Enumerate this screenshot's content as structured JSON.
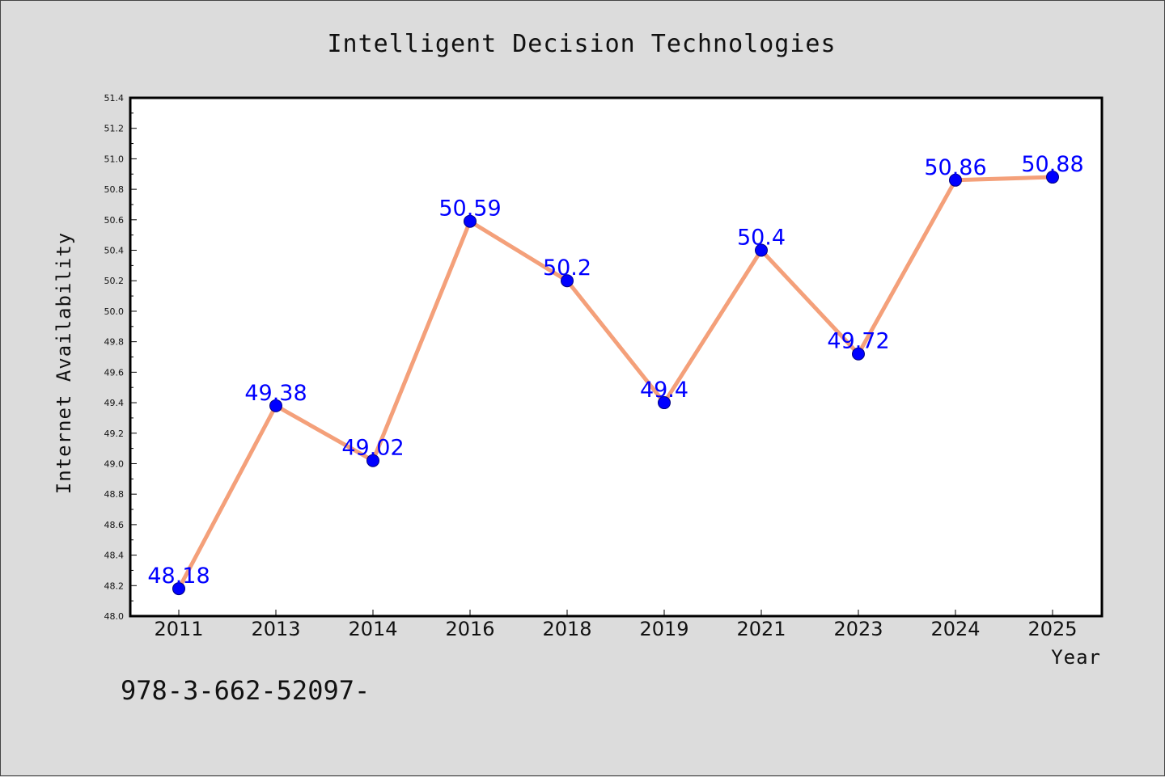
{
  "chart_data": {
    "type": "line",
    "title": "Intelligent Decision Technologies",
    "xlabel": "Year",
    "ylabel": "Internet Availability",
    "categories": [
      "2011",
      "2013",
      "2014",
      "2016",
      "2018",
      "2019",
      "2021",
      "2023",
      "2024",
      "2025"
    ],
    "series": [
      {
        "values": [
          48.18,
          49.38,
          49.02,
          50.59,
          50.2,
          49.4,
          50.4,
          49.72,
          50.86,
          50.88
        ],
        "labels": [
          "48.18",
          "49.38",
          "49.02",
          "50.59",
          "50.2",
          "49.4",
          "50.4",
          "49.72",
          "50.86",
          "50.88"
        ]
      }
    ],
    "ylim": [
      48.0,
      51.4
    ],
    "yticks": [
      "48.0",
      "48.2",
      "48.4",
      "48.6",
      "48.8",
      "49.0",
      "49.2",
      "49.4",
      "49.6",
      "49.8",
      "50.0",
      "50.2",
      "50.4",
      "50.6",
      "50.8",
      "51.0",
      "51.2",
      "51.4"
    ],
    "grid": false,
    "colors": {
      "line": "#f4a07a",
      "marker": "#0000ff",
      "marker_edge": "#000080",
      "data_label": "#0000ff",
      "plot_bg": "#ffffff",
      "figure_bg": "#dcdcdc"
    }
  },
  "footnote": "978-3-662-52097-"
}
